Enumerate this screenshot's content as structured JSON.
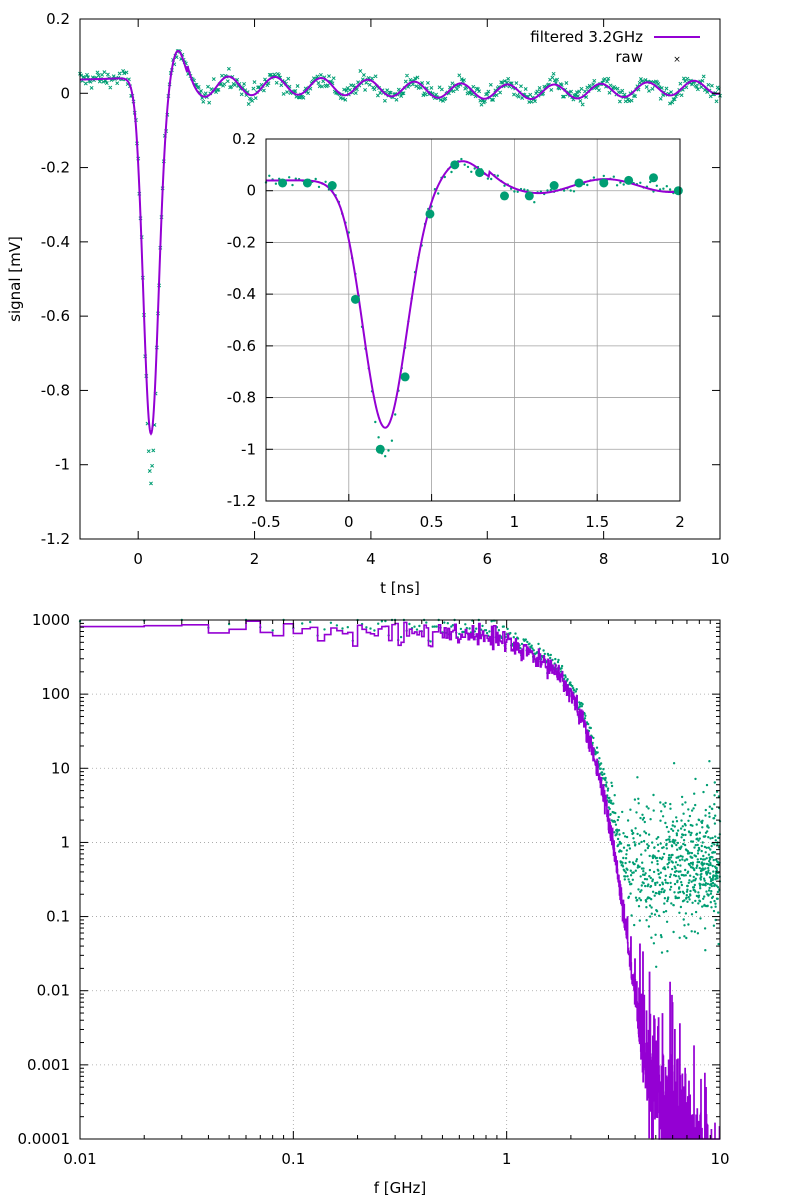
{
  "colors": {
    "filtered": "#9400d3",
    "raw": "#009e73",
    "grid": "#a0a0a0",
    "axis": "#000000"
  },
  "chart_data": [
    {
      "type": "line",
      "xlabel": "t [ns]",
      "ylabel": "signal [mV]",
      "xlim": [
        -1,
        10
      ],
      "ylim": [
        -1.2,
        0.2
      ],
      "xticks": [
        0,
        2,
        4,
        6,
        8,
        10
      ],
      "yticks": [
        0.2,
        0,
        -0.2,
        -0.4,
        -0.6,
        -0.8,
        -1,
        -1.2
      ],
      "legend_position": "top-right",
      "series": [
        {
          "name": "filtered 3.2GHz",
          "style": "line"
        },
        {
          "name": "raw",
          "style": "points"
        }
      ],
      "pulse": {
        "t_min": 0.22,
        "y_min": -0.93,
        "raw_y_min": -1.04,
        "overshoot_t": 0.68,
        "overshoot_y": 0.08
      }
    },
    {
      "type": "line",
      "inset": true,
      "xlim": [
        -0.5,
        2
      ],
      "ylim": [
        -1.2,
        0.2
      ],
      "xticks": [
        -0.5,
        0,
        0.5,
        1,
        1.5,
        2
      ],
      "yticks": [
        0.2,
        0,
        -0.2,
        -0.4,
        -0.6,
        -0.8,
        -1,
        -1.2
      ],
      "grid": true,
      "sample_points": [
        {
          "x": -0.4,
          "y": 0.03
        },
        {
          "x": -0.25,
          "y": 0.03
        },
        {
          "x": -0.1,
          "y": 0.02
        },
        {
          "x": 0.04,
          "y": -0.42
        },
        {
          "x": 0.19,
          "y": -1.0
        },
        {
          "x": 0.34,
          "y": -0.72
        },
        {
          "x": 0.49,
          "y": -0.09
        },
        {
          "x": 0.64,
          "y": 0.1
        },
        {
          "x": 0.79,
          "y": 0.07
        },
        {
          "x": 0.94,
          "y": -0.02
        },
        {
          "x": 1.09,
          "y": -0.02
        },
        {
          "x": 1.24,
          "y": 0.02
        },
        {
          "x": 1.39,
          "y": 0.03
        },
        {
          "x": 1.54,
          "y": 0.03
        },
        {
          "x": 1.69,
          "y": 0.04
        },
        {
          "x": 1.84,
          "y": 0.05
        },
        {
          "x": 1.99,
          "y": 0.0
        }
      ]
    },
    {
      "type": "line",
      "xlabel": "f [GHz]",
      "xscale": "log",
      "yscale": "log",
      "xlim": [
        0.01,
        10
      ],
      "ylim": [
        0.0001,
        1000
      ],
      "xticks": [
        0.01,
        0.1,
        1,
        10
      ],
      "xtick_labels": [
        "0.01",
        "0.1",
        "1",
        "10"
      ],
      "yticks": [
        1000,
        100,
        10,
        1,
        0.1,
        0.01,
        0.001,
        0.0001
      ],
      "ytick_labels": [
        "1000",
        "100",
        "10",
        "1",
        "0.1",
        "0.01",
        "0.001",
        "0.0001"
      ],
      "grid": true,
      "series": [
        {
          "name": "filtered 3.2GHz",
          "style": "line"
        },
        {
          "name": "raw",
          "style": "points"
        }
      ],
      "spectrum": {
        "flat_level": 850,
        "knee_f": 1.2,
        "filtered_floor": 0.0001,
        "raw_noise_floor": 0.5
      }
    }
  ]
}
